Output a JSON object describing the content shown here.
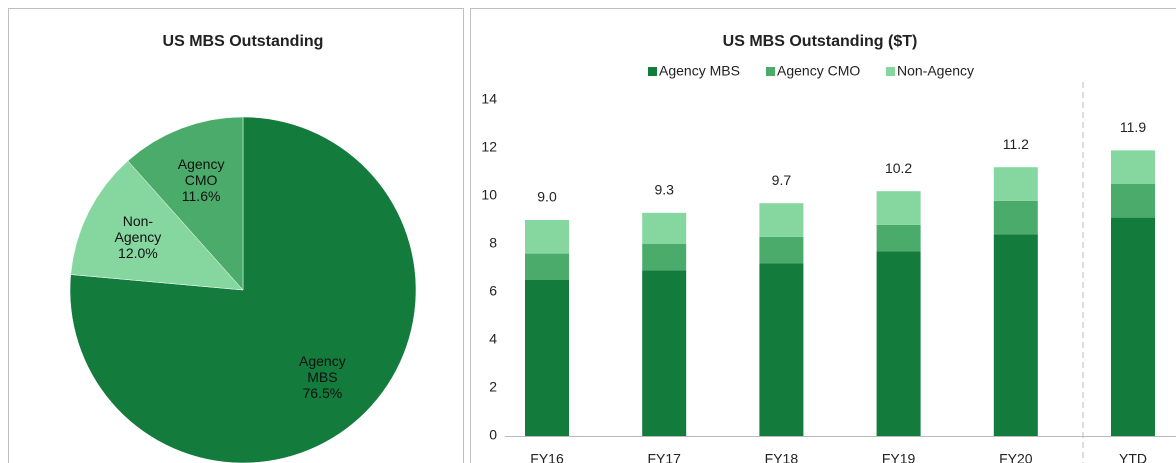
{
  "chart_data": [
    {
      "type": "pie",
      "title": "US MBS Outstanding",
      "categories": [
        "Agency MBS",
        "Non-Agency",
        "Agency CMO"
      ],
      "values": [
        76.5,
        12.0,
        11.6
      ],
      "value_labels": [
        "76.5%",
        "12.0%",
        "11.6%"
      ],
      "colors": [
        "#137b3c",
        "#86d6a0",
        "#4aab6b"
      ]
    },
    {
      "type": "stacked_bar",
      "title": "US MBS Outstanding ($T)",
      "categories": [
        "FY16",
        "FY17",
        "FY18",
        "FY19",
        "FY20",
        "YTD"
      ],
      "series": [
        {
          "name": "Agency MBS",
          "color": "#137b3c",
          "values": [
            6.5,
            6.9,
            7.2,
            7.7,
            8.4,
            9.1
          ]
        },
        {
          "name": "Agency CMO",
          "color": "#4aab6b",
          "values": [
            1.1,
            1.1,
            1.1,
            1.1,
            1.4,
            1.4
          ]
        },
        {
          "name": "Non-Agency",
          "color": "#86d6a0",
          "values": [
            1.4,
            1.3,
            1.4,
            1.4,
            1.4,
            1.4
          ]
        }
      ],
      "totals": [
        9.0,
        9.3,
        9.7,
        10.2,
        11.2,
        11.9
      ],
      "total_labels": [
        "9.0",
        "9.3",
        "9.7",
        "10.2",
        "11.2",
        "11.9"
      ],
      "ylim": [
        0,
        14
      ],
      "yticks": [
        0,
        2,
        4,
        6,
        8,
        10,
        12,
        14
      ],
      "grid": false,
      "legend": "top"
    }
  ]
}
